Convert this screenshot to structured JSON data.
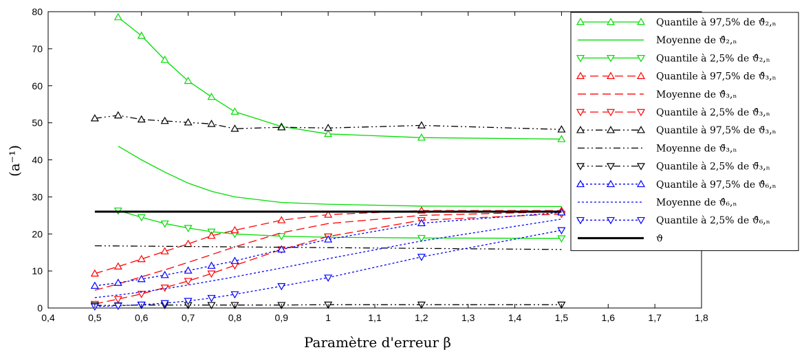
{
  "chart_data": {
    "type": "line",
    "xlabel": "Paramètre d'erreur β",
    "ylabel": "(a⁻¹)",
    "xlim": [
      0.4,
      1.8
    ],
    "ylim": [
      0,
      80
    ],
    "xticks": [
      "0,4",
      "0,5",
      "0,6",
      "0,7",
      "0,8",
      "0,9",
      "1",
      "1,1",
      "1,2",
      "1,3",
      "1,4",
      "1,5",
      "1,6",
      "1,7",
      "1,8"
    ],
    "yticks": [
      "0",
      "10",
      "20",
      "30",
      "40",
      "50",
      "60",
      "70",
      "80"
    ],
    "grid": false,
    "legend_position": "right",
    "series": [
      {
        "name": "Quantile à 97,5% de ϑ̂₂,ₙ",
        "color": "#00dd00",
        "dash": "",
        "marker": "tri-up",
        "x": [
          0.55,
          0.6,
          0.65,
          0.7,
          0.75,
          0.8,
          0.9,
          1,
          1.2,
          1.5
        ],
        "y": [
          78.5,
          73.5,
          67,
          61.3,
          57,
          53,
          49,
          47,
          46,
          45.6
        ]
      },
      {
        "name": "Moyenne de ϑ̂₂,ₙ",
        "color": "#00dd00",
        "dash": "",
        "marker": "none",
        "x": [
          0.55,
          0.6,
          0.65,
          0.7,
          0.75,
          0.8,
          0.9,
          1,
          1.2,
          1.5
        ],
        "y": [
          43.7,
          40,
          36.7,
          33.7,
          31.5,
          30,
          28.5,
          28,
          27.5,
          27.4
        ]
      },
      {
        "name": "Quantile à 2,5% de ϑ̂₂,ₙ",
        "color": "#00dd00",
        "dash": "",
        "marker": "tri-down",
        "x": [
          0.55,
          0.6,
          0.65,
          0.7,
          0.75,
          0.8,
          0.9,
          1,
          1.2,
          1.5
        ],
        "y": [
          26.3,
          24.5,
          22.8,
          21.6,
          20.6,
          20,
          19.4,
          19.1,
          18.9,
          18.8
        ]
      },
      {
        "name": "Quantile à 97,5% de ϑ̂₃,ₙ",
        "color": "#ff0000",
        "dash": "12,6",
        "marker": "tri-up",
        "x": [
          0.5,
          0.55,
          0.6,
          0.65,
          0.7,
          0.75,
          0.8,
          0.9,
          1,
          1.2,
          1.5
        ],
        "y": [
          9.3,
          11.2,
          13.2,
          15.3,
          17.3,
          19.5,
          21,
          23.7,
          25.2,
          26.3,
          26.3
        ]
      },
      {
        "name": "Moyenne de ϑ̂₃,ₙ",
        "color": "#ff0000",
        "dash": "12,6",
        "marker": "none",
        "x": [
          0.5,
          0.55,
          0.6,
          0.65,
          0.7,
          0.75,
          0.8,
          0.9,
          1,
          1.2,
          1.5
        ],
        "y": [
          4.8,
          6.5,
          8.4,
          10.3,
          12.3,
          14.4,
          16.5,
          20.3,
          22.8,
          25,
          26
        ]
      },
      {
        "name": "Quantile à 2,5% de ϑ̂₃,ₙ",
        "color": "#ff0000",
        "dash": "12,6",
        "marker": "tri-down",
        "x": [
          0.5,
          0.55,
          0.6,
          0.65,
          0.7,
          0.75,
          0.8,
          0.9,
          1,
          1.2,
          1.5
        ],
        "y": [
          1.1,
          2.4,
          3.8,
          5.5,
          7.3,
          9.3,
          11.5,
          15.8,
          19.3,
          23.7,
          25.4
        ]
      },
      {
        "name": "Quantile à 97,5% de ϑ̄₃,ₙ",
        "color": "#000000",
        "dash": "10,4,2,4,2,4",
        "marker": "tri-up",
        "x": [
          0.5,
          0.55,
          0.6,
          0.65,
          0.7,
          0.75,
          0.8,
          0.9,
          1,
          1.2,
          1.5
        ],
        "y": [
          51.2,
          52,
          50.9,
          50.5,
          50.1,
          49.7,
          48.4,
          48.8,
          48.6,
          49.3,
          48.2
        ]
      },
      {
        "name": "Moyenne de ϑ̄₃,ₙ",
        "color": "#000000",
        "dash": "10,4,2,4,2,4",
        "marker": "none",
        "x": [
          0.5,
          1.5
        ],
        "y": [
          16.8,
          15.8
        ]
      },
      {
        "name": "Quantile à 2,5% de ϑ̄₃,ₙ",
        "color": "#000000",
        "dash": "10,4,2,4,2,4",
        "marker": "tri-down",
        "x": [
          0.5,
          0.55,
          0.6,
          0.65,
          0.7,
          0.75,
          0.8,
          0.9,
          1,
          1.2,
          1.5
        ],
        "y": [
          0.7,
          0.7,
          0.8,
          0.8,
          0.8,
          0.8,
          0.8,
          0.8,
          0.9,
          0.9,
          0.9
        ]
      },
      {
        "name": "Quantile à 97,5% de ϑ̂₆,ₙ",
        "color": "#0000ff",
        "dash": "3,3",
        "marker": "tri-up",
        "x": [
          0.5,
          0.55,
          0.6,
          0.65,
          0.7,
          0.75,
          0.8,
          0.9,
          1,
          1.2,
          1.5
        ],
        "y": [
          6,
          6.8,
          7.8,
          8.9,
          10.1,
          11.4,
          12.7,
          15.8,
          18.5,
          22.9,
          25.8
        ]
      },
      {
        "name": "Moyenne de ϑ̂₆,ₙ",
        "color": "#0000ff",
        "dash": "3,3",
        "marker": "none",
        "x": [
          0.5,
          0.55,
          0.6,
          0.65,
          0.7,
          0.75,
          0.8,
          0.9,
          1,
          1.2,
          1.5
        ],
        "y": [
          2.8,
          3.5,
          4.3,
          5.2,
          6.2,
          7.3,
          8.4,
          10.8,
          13.3,
          18.1,
          24
        ]
      },
      {
        "name": "Quantile à 2,5% de ϑ̂₆,ₙ",
        "color": "#0000ff",
        "dash": "3,3",
        "marker": "tri-down",
        "x": [
          0.5,
          0.55,
          0.6,
          0.65,
          0.7,
          0.75,
          0.8,
          0.9,
          1,
          1.2,
          1.5
        ],
        "y": [
          0.4,
          0.6,
          0.9,
          1.3,
          1.9,
          2.7,
          3.7,
          5.9,
          8.2,
          13.8,
          21
        ]
      },
      {
        "name": "ϑ",
        "color": "#000000",
        "dash": "",
        "marker": "none",
        "width": 3,
        "x": [
          0.5,
          1.5
        ],
        "y": [
          26,
          26
        ]
      }
    ]
  }
}
